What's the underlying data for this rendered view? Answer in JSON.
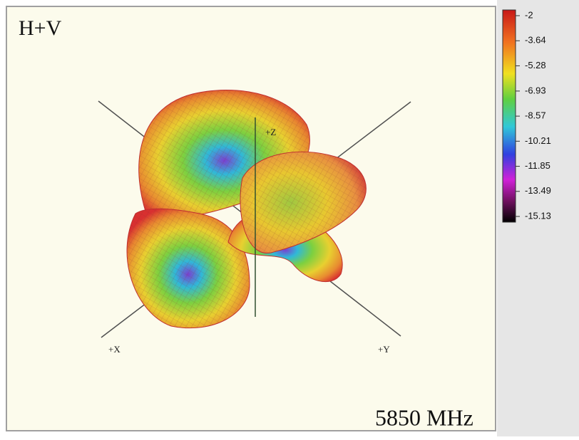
{
  "title": "H+V",
  "frequency_label": "5850 MHz",
  "axis_labels": {
    "x": "+X",
    "y": "+Y",
    "z": "+Z"
  },
  "colorbar": {
    "ticks": [
      -2,
      -3.64,
      -5.28,
      -6.93,
      -8.57,
      -10.21,
      -11.85,
      -13.49,
      -15.13
    ]
  }
}
